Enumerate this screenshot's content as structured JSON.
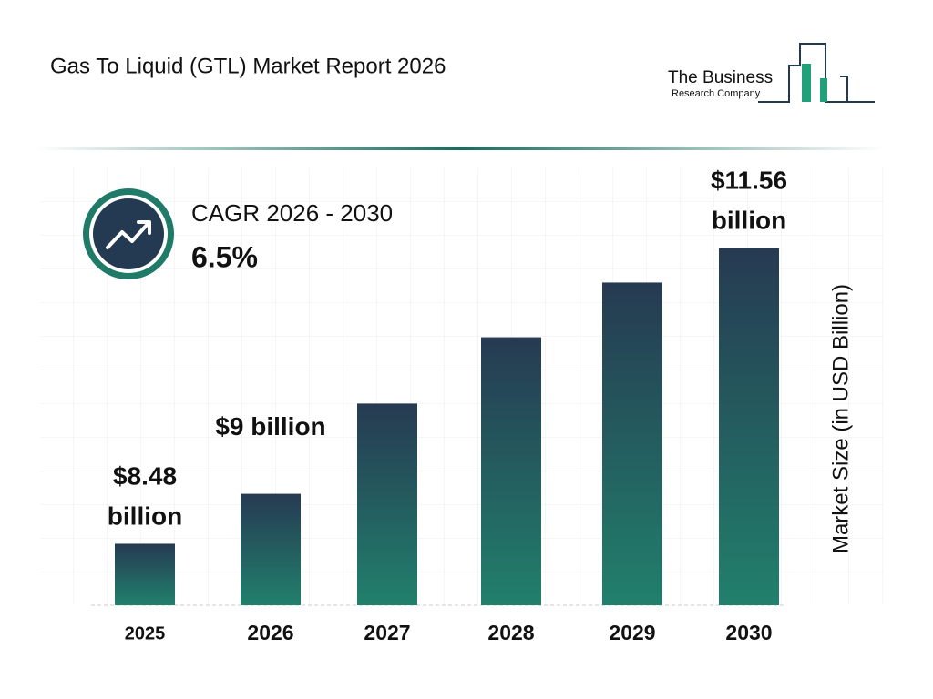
{
  "chart_data": {
    "type": "bar",
    "title": "Gas To Liquid (GTL) Market Report 2026",
    "categories": [
      "2025",
      "2026",
      "2027",
      "2028",
      "2029",
      "2030"
    ],
    "values": [
      8.48,
      9,
      9.94,
      10.63,
      11.2,
      11.56
    ],
    "value_labels": [
      "$8.48 billion",
      "$9 billion",
      null,
      null,
      null,
      "$11.56 billion"
    ],
    "colors": [
      "#263a52",
      "#21806c"
    ],
    "ylim": [
      7.84,
      12
    ],
    "y_label": "Market Size (in USD Billion)",
    "cagr_label": "CAGR 2026 - 2030",
    "cagr_value": "6.5%"
  },
  "logo": {
    "line1": "The Business",
    "line2": "Research Company"
  }
}
